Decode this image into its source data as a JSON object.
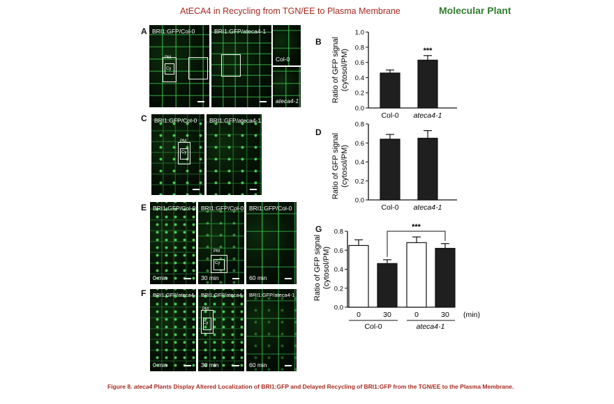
{
  "header": {
    "title": "AtECA4 in Recycling from TGN/EE to Plasma Membrane",
    "journal": "Molecular Plant"
  },
  "panels": {
    "A": {
      "letter": "A",
      "images": [
        "BRI1:GFP/Col-0",
        "BRI1:GFP/ateca4-1"
      ],
      "insets": [
        "Col-0",
        "ateca4-1"
      ],
      "roi": {
        "pm": "PM",
        "cy": "Cy"
      }
    },
    "C": {
      "letter": "C",
      "images": [
        "BRI1:GFP/Col-0",
        "BRI1:GFP/ateca4-1"
      ],
      "roi": {
        "pm": "PM",
        "cy": "Cy"
      }
    },
    "E": {
      "letter": "E",
      "images": [
        "BRI1:GFP/Col-0",
        "BRI1:GFP/Col-0",
        "BRI1:GFP/Col-0"
      ],
      "times": [
        "0 min",
        "30 min",
        "60 min"
      ],
      "roi": {
        "pm": "PM",
        "cy": "Cy"
      }
    },
    "F": {
      "letter": "F",
      "images": [
        "BRI1:GFP/ateca4-1",
        "BRI1:GFP/ateca4-1",
        "BRI1:GFP/ateca4-1"
      ],
      "times": [
        "0 min",
        "30 min",
        "60 min"
      ],
      "roi": {
        "pm": "PM",
        "cy": "Cy"
      }
    }
  },
  "chart_data": [
    {
      "panel": "B",
      "type": "bar",
      "categories": [
        "Col-0",
        "ateca4-1"
      ],
      "values": [
        0.46,
        0.63
      ],
      "errors": [
        0.04,
        0.06
      ],
      "ylabel": "Ratio of GFP signal (cytosol/PM)",
      "ylim": [
        0,
        1.0
      ],
      "yticks": [
        "0.0",
        "0.2",
        "0.4",
        "0.6",
        "0.8",
        "1.0"
      ],
      "significance": "***",
      "bar_color": "#1f1f1f"
    },
    {
      "panel": "D",
      "type": "bar",
      "categories": [
        "Col-0",
        "ateca4-1"
      ],
      "values": [
        0.64,
        0.65
      ],
      "errors": [
        0.05,
        0.08
      ],
      "ylabel": "Ratio of GFP signal (cytosol/PM)",
      "ylim": [
        0,
        0.8
      ],
      "yticks": [
        "0.0",
        "0.2",
        "0.4",
        "0.6",
        "0.8"
      ],
      "bar_color": "#1f1f1f"
    },
    {
      "panel": "G",
      "type": "bar",
      "categories": [
        "0",
        "30",
        "0",
        "30"
      ],
      "groups": [
        "Col-0",
        "ateca4-1"
      ],
      "unit": "(min)",
      "values": [
        0.65,
        0.46,
        0.68,
        0.62
      ],
      "errors": [
        0.06,
        0.04,
        0.06,
        0.05
      ],
      "fills": [
        "#ffffff",
        "#1f1f1f",
        "#ffffff",
        "#1f1f1f"
      ],
      "ylabel": "Ratio of GFP signal (cytosol/PM)",
      "ylim": [
        0,
        0.8
      ],
      "yticks": [
        "0.0",
        "0.2",
        "0.4",
        "0.6",
        "0.8"
      ],
      "significance": "***"
    }
  ],
  "caption": {
    "prefix": "Figure 8.",
    "gene": "ateca4",
    "text": "Plants Display Altered Localization of BRI1:GFP and Delayed Recycling of BRI1:GFP from the TGN/EE to the Plasma Membrane."
  }
}
